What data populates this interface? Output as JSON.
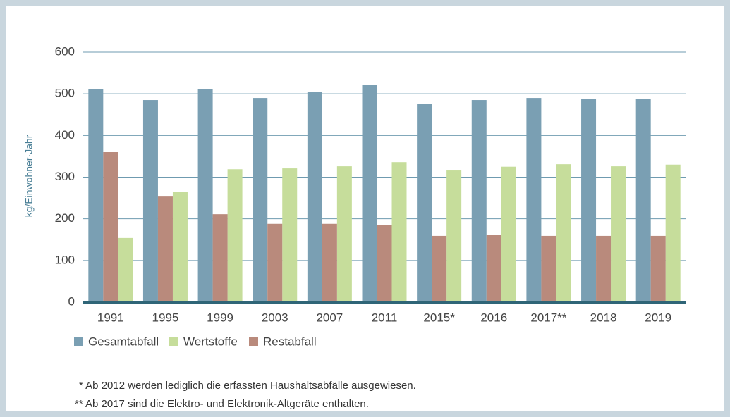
{
  "chart_data": {
    "type": "bar",
    "y_label": "kg/Einwohner·Jahr",
    "categories": [
      "1991",
      "1995",
      "1999",
      "2003",
      "2007",
      "2011",
      "2015*",
      "2016",
      "2017**",
      "2018",
      "2019"
    ],
    "series": [
      {
        "name": "Gesamtabfall",
        "color": "#7a9fb3",
        "values": [
          512,
          485,
          512,
          490,
          504,
          522,
          475,
          485,
          490,
          487,
          488
        ]
      },
      {
        "name": "Wertstoffe",
        "color": "#c6dd9b",
        "values": [
          154,
          264,
          319,
          321,
          326,
          336,
          316,
          325,
          331,
          326,
          330
        ]
      },
      {
        "name": "Restabfall",
        "color": "#b98a7c",
        "values": [
          360,
          255,
          211,
          188,
          188,
          185,
          159,
          161,
          159,
          159,
          159
        ]
      }
    ],
    "ylim": [
      0,
      600
    ],
    "yticks": [
      0,
      100,
      200,
      300,
      400,
      500,
      600
    ],
    "grid": true,
    "footnotes": [
      "* Ab 2012 werden lediglich die erfassten Haushaltsabfälle ausgewiesen.",
      "** Ab 2017 sind die Elektro- und Elektronik-Altgeräte enthalten."
    ]
  }
}
